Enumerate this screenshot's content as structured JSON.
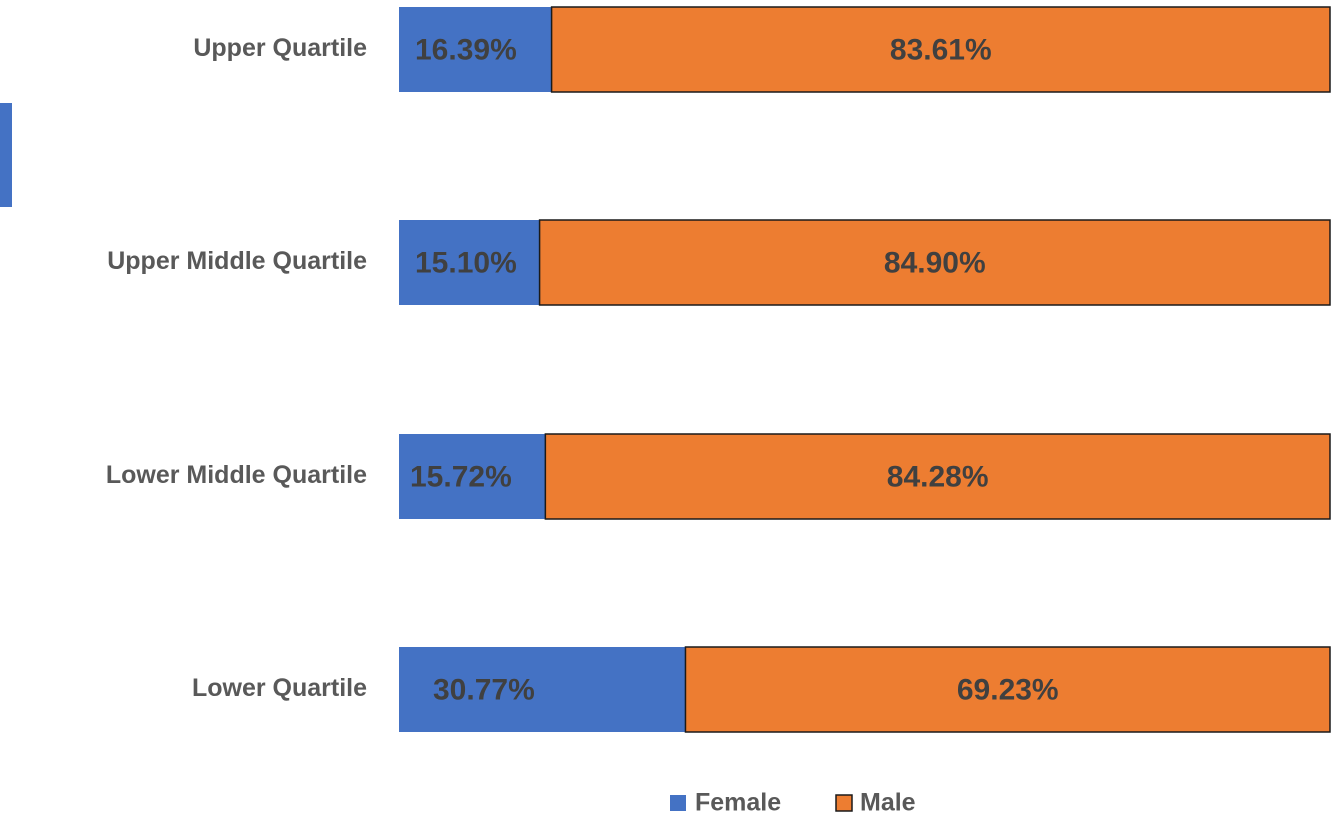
{
  "colors": {
    "female": "#4472C4",
    "male": "#ED7D31",
    "border": "#1a1a1a",
    "label_text": "#404040",
    "category_text": "#595959"
  },
  "chart_data": {
    "type": "bar",
    "orientation": "horizontal",
    "stacked": "percent",
    "title": "",
    "xlabel": "",
    "ylabel": "",
    "xlim": [
      0,
      100
    ],
    "grid": false,
    "legend_position": "bottom",
    "categories": [
      "Upper Quartile",
      "Upper Middle Quartile",
      "Lower Middle Quartile",
      "Lower Quartile"
    ],
    "series": [
      {
        "name": "Female",
        "values": [
          16.39,
          15.1,
          15.72,
          30.77
        ],
        "labels": [
          "16.39%",
          "15.10%",
          "15.72%",
          "30.77%"
        ]
      },
      {
        "name": "Male",
        "values": [
          83.61,
          84.9,
          84.28,
          69.23
        ],
        "labels": [
          "83.61%",
          "84.90%",
          "84.28%",
          "69.23%"
        ]
      }
    ]
  }
}
